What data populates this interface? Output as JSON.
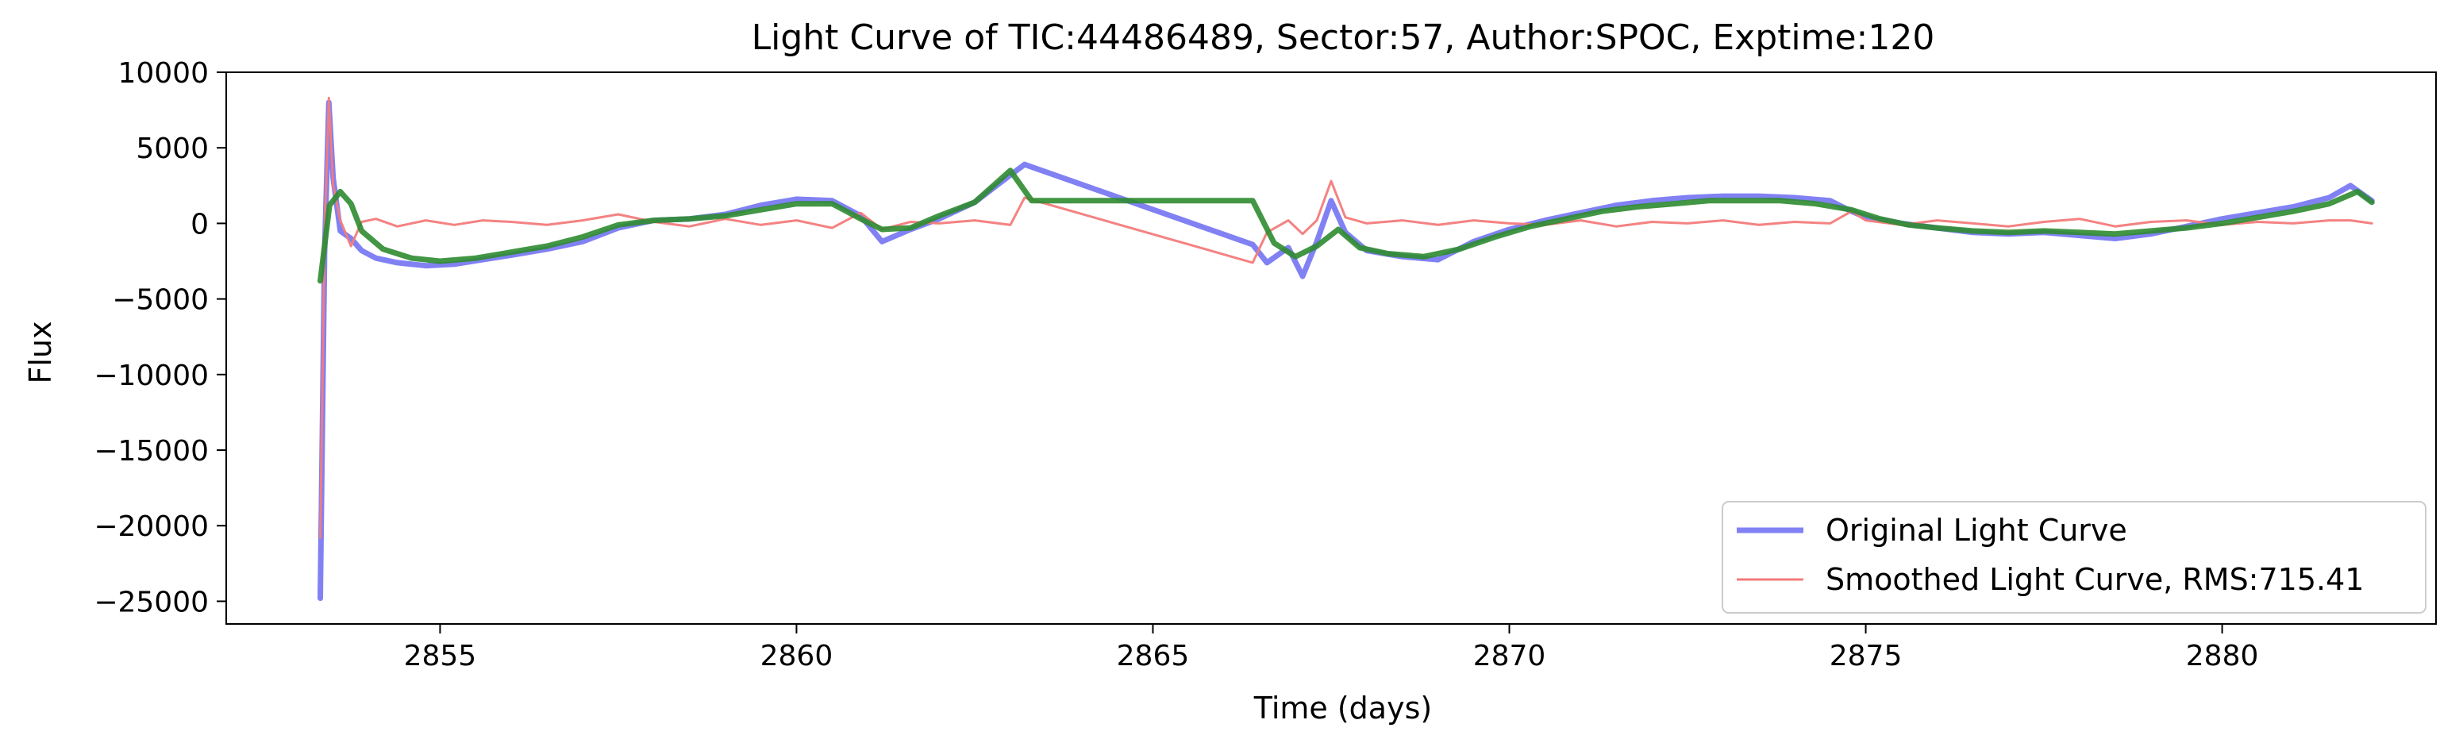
{
  "chart_data": {
    "type": "line",
    "title": "Light Curve of TIC:44486489, Sector:57, Author:SPOC, Exptime:120",
    "xlabel": "Time (days)",
    "ylabel": "Flux",
    "xlim": [
      2852.0,
      2883.0
    ],
    "ylim": [
      -26500,
      10000
    ],
    "xticks": [
      2855,
      2860,
      2865,
      2870,
      2875,
      2880
    ],
    "yticks": [
      10000,
      5000,
      0,
      -5000,
      -10000,
      -15000,
      -20000,
      -25000
    ],
    "grid": false,
    "legend": "lower-right",
    "series": [
      {
        "name": "Original Light Curve",
        "color": "#6b6bf2",
        "x": [
          2853.32,
          2853.38,
          2853.44,
          2853.5,
          2853.6,
          2853.75,
          2853.9,
          2854.1,
          2854.4,
          2854.8,
          2855.2,
          2855.6,
          2856.0,
          2856.5,
          2857.0,
          2857.5,
          2858.0,
          2858.5,
          2859.0,
          2859.5,
          2860.0,
          2860.5,
          2860.9,
          2861.2,
          2861.6,
          2862.0,
          2862.5,
          2863.0,
          2863.2,
          2866.4,
          2866.6,
          2866.9,
          2867.1,
          2867.3,
          2867.5,
          2867.7,
          2868.0,
          2868.5,
          2869.0,
          2869.5,
          2870.0,
          2870.5,
          2871.0,
          2871.5,
          2872.0,
          2872.5,
          2873.0,
          2873.5,
          2874.0,
          2874.5,
          2874.8,
          2875.0,
          2875.5,
          2876.0,
          2876.5,
          2877.0,
          2877.5,
          2878.0,
          2878.5,
          2879.0,
          2879.5,
          2880.0,
          2880.5,
          2881.0,
          2881.5,
          2881.8,
          2882.1
        ],
        "values": [
          -24800,
          -2000,
          8000,
          3000,
          -500,
          -1000,
          -1800,
          -2300,
          -2600,
          -2800,
          -2700,
          -2400,
          -2100,
          -1700,
          -1200,
          -300,
          200,
          300,
          600,
          1200,
          1600,
          1500,
          500,
          -1200,
          -400,
          300,
          1400,
          3200,
          3900,
          -1400,
          -2600,
          -1600,
          -3500,
          -1200,
          1500,
          -600,
          -1800,
          -2200,
          -2400,
          -1200,
          -400,
          200,
          700,
          1200,
          1500,
          1700,
          1800,
          1800,
          1700,
          1500,
          800,
          400,
          0,
          -300,
          -600,
          -700,
          -600,
          -800,
          -1000,
          -700,
          -200,
          300,
          700,
          1100,
          1700,
          2500,
          1500
        ]
      },
      {
        "name": "Smoothed Light Curve, RMS:715.41",
        "color": "#f37b7b",
        "x": [
          2853.32,
          2853.38,
          2853.44,
          2853.5,
          2853.6,
          2853.75,
          2853.9,
          2854.1,
          2854.4,
          2854.8,
          2855.2,
          2855.6,
          2856.0,
          2856.5,
          2857.0,
          2857.5,
          2858.0,
          2858.5,
          2859.0,
          2859.5,
          2860.0,
          2860.5,
          2860.9,
          2861.2,
          2861.6,
          2862.0,
          2862.5,
          2863.0,
          2863.2,
          2866.4,
          2866.6,
          2866.9,
          2867.1,
          2867.3,
          2867.5,
          2867.7,
          2868.0,
          2868.5,
          2869.0,
          2869.5,
          2870.0,
          2870.5,
          2871.0,
          2871.5,
          2872.0,
          2872.5,
          2873.0,
          2873.5,
          2874.0,
          2874.5,
          2874.8,
          2875.0,
          2875.5,
          2876.0,
          2876.5,
          2877.0,
          2877.5,
          2878.0,
          2878.5,
          2879.0,
          2879.5,
          2880.0,
          2880.5,
          2881.0,
          2881.5,
          2881.8,
          2882.1
        ],
        "values": [
          -20800,
          -800,
          8300,
          2500,
          200,
          -1500,
          100,
          300,
          -200,
          200,
          -100,
          200,
          100,
          -100,
          200,
          600,
          100,
          -200,
          300,
          -100,
          200,
          -300,
          700,
          -400,
          100,
          0,
          200,
          -100,
          1700,
          -2600,
          -600,
          200,
          -700,
          200,
          2800,
          400,
          0,
          200,
          -100,
          200,
          0,
          -100,
          200,
          -200,
          100,
          0,
          200,
          -100,
          100,
          0,
          800,
          200,
          -100,
          200,
          0,
          -200,
          100,
          300,
          -200,
          100,
          200,
          -100,
          100,
          0,
          200,
          200,
          0
        ]
      },
      {
        "name": "",
        "color": "#2e8b30",
        "x": [
          2853.32,
          2853.45,
          2853.6,
          2853.75,
          2853.9,
          2854.2,
          2854.6,
          2855.0,
          2855.5,
          2856.0,
          2856.5,
          2857.0,
          2857.5,
          2858.0,
          2858.5,
          2859.0,
          2859.5,
          2860.0,
          2860.5,
          2860.9,
          2861.2,
          2861.6,
          2862.0,
          2862.5,
          2863.0,
          2863.3,
          2866.4,
          2866.7,
          2867.0,
          2867.3,
          2867.6,
          2867.9,
          2868.3,
          2868.8,
          2869.3,
          2869.8,
          2870.3,
          2870.8,
          2871.3,
          2871.8,
          2872.3,
          2872.8,
          2873.3,
          2873.8,
          2874.3,
          2874.8,
          2875.2,
          2875.6,
          2876.0,
          2876.5,
          2877.0,
          2877.5,
          2878.0,
          2878.5,
          2879.0,
          2879.5,
          2880.0,
          2880.5,
          2881.0,
          2881.5,
          2881.9,
          2882.1
        ],
        "values": [
          -3800,
          1200,
          2100,
          1300,
          -500,
          -1700,
          -2300,
          -2500,
          -2300,
          -1900,
          -1500,
          -900,
          -100,
          200,
          300,
          500,
          900,
          1300,
          1300,
          300,
          -400,
          -300,
          500,
          1400,
          3500,
          1500,
          1500,
          -1300,
          -2200,
          -1500,
          -400,
          -1600,
          -2000,
          -2200,
          -1700,
          -900,
          -200,
          300,
          800,
          1100,
          1300,
          1500,
          1500,
          1500,
          1300,
          900,
          300,
          -100,
          -300,
          -500,
          -600,
          -500,
          -600,
          -700,
          -500,
          -300,
          0,
          400,
          800,
          1300,
          2100,
          1400
        ]
      }
    ]
  }
}
